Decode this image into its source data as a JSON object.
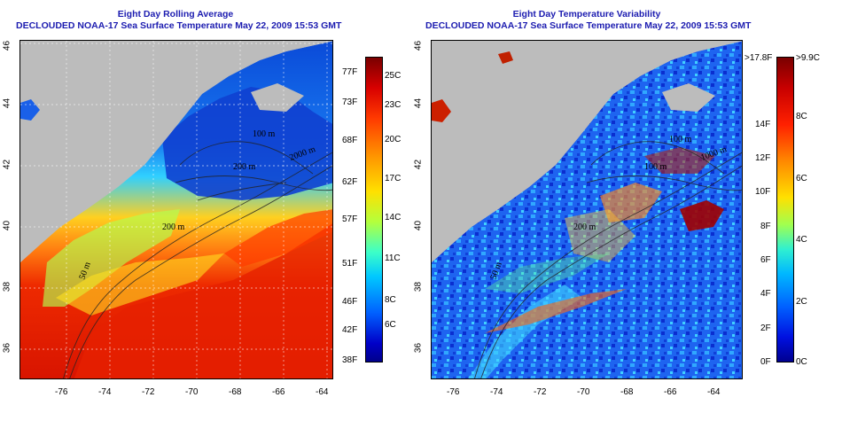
{
  "left_map": {
    "title_line1": "Eight Day Rolling Average",
    "title_line2": "DECLOUDED NOAA-17 Sea Surface Temperature May 22, 2009 15:53 GMT",
    "contour_labels": [
      "200 m",
      "50 m",
      "100 m",
      "2000 m",
      "200 m"
    ],
    "colorbar_fahrenheit": [
      "77F",
      "73F",
      "68F",
      "62F",
      "57F",
      "51F",
      "46F",
      "42F",
      "38F"
    ],
    "colorbar_celsius": [
      "25C",
      "23C",
      "20C",
      "17C",
      "14C",
      "11C",
      "8C",
      "6C"
    ]
  },
  "right_map": {
    "title_line1": "Eight Day Temperature Variability",
    "title_line2": "DECLOUDED NOAA-17 Sea Surface Temperature May 22, 2009 15:53 GMT",
    "contour_labels": [
      "200 m",
      "50 m",
      "100 m",
      "1000 m",
      "100 m"
    ],
    "colorbar_fahrenheit": [
      ">17.8F",
      "14F",
      "12F",
      "10F",
      "8F",
      "6F",
      "4F",
      "2F",
      "0F"
    ],
    "colorbar_celsius": [
      ">9.9C",
      "8C",
      "6C",
      "4C",
      "2C",
      "0C"
    ]
  },
  "axes": {
    "longitude_ticks": [
      "-76",
      "-74",
      "-72",
      "-70",
      "-68",
      "-66",
      "-64"
    ],
    "latitude_ticks": [
      "46",
      "44",
      "42",
      "40",
      "38",
      "36"
    ]
  },
  "colors": {
    "land": "#bcbcbc",
    "title": "#1c1cb0"
  }
}
